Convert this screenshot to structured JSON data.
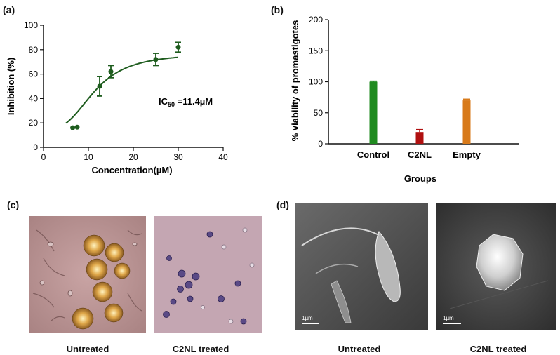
{
  "panels": {
    "a": "(a)",
    "b": "(b)",
    "c": "(c)",
    "d": "(d)"
  },
  "chart_data": [
    {
      "type": "scatter",
      "panel": "(a)",
      "xlabel": "Concentration(µM)",
      "ylabel": "Inhibition (%)",
      "xlim": [
        0,
        40
      ],
      "ylim": [
        0,
        100
      ],
      "xticks": [
        0,
        10,
        20,
        30,
        40
      ],
      "yticks": [
        0,
        20,
        40,
        60,
        80,
        100
      ],
      "annotation": {
        "prefix": "IC",
        "sub": "50",
        "suffix": " =11.4µM"
      },
      "points": [
        {
          "x": 6.5,
          "y": 16,
          "err": 0
        },
        {
          "x": 7.5,
          "y": 16.5,
          "err": 0
        },
        {
          "x": 12.5,
          "y": 50,
          "err": 8
        },
        {
          "x": 15,
          "y": 62,
          "err": 5
        },
        {
          "x": 25,
          "y": 72,
          "err": 5
        },
        {
          "x": 30,
          "y": 82,
          "err": 4
        }
      ],
      "fit": {
        "bottom": 15,
        "top": 77,
        "ic50": 11.4,
        "hill": 3,
        "x_range": [
          5,
          30
        ]
      },
      "color": "#1e5c1e",
      "grid": false
    },
    {
      "type": "bar",
      "panel": "(b)",
      "xlabel": "Groups",
      "ylabel": "% viability of promastigotes",
      "categories": [
        "Control",
        "C2NL",
        "Empty"
      ],
      "values": [
        100,
        19,
        70
      ],
      "errors": [
        1,
        4,
        2
      ],
      "colors": [
        "#1f8b1f",
        "#b01010",
        "#d87a1a"
      ],
      "ylim": [
        0,
        200
      ],
      "yticks": [
        0,
        50,
        100,
        150,
        200
      ],
      "grid": false
    }
  ],
  "images": {
    "c_left_caption": "Untreated",
    "c_right_caption": "C2NL treated",
    "d_left_caption": "Untreated",
    "d_right_caption": "C2NL treated",
    "scale_bar_label": "1µm"
  }
}
